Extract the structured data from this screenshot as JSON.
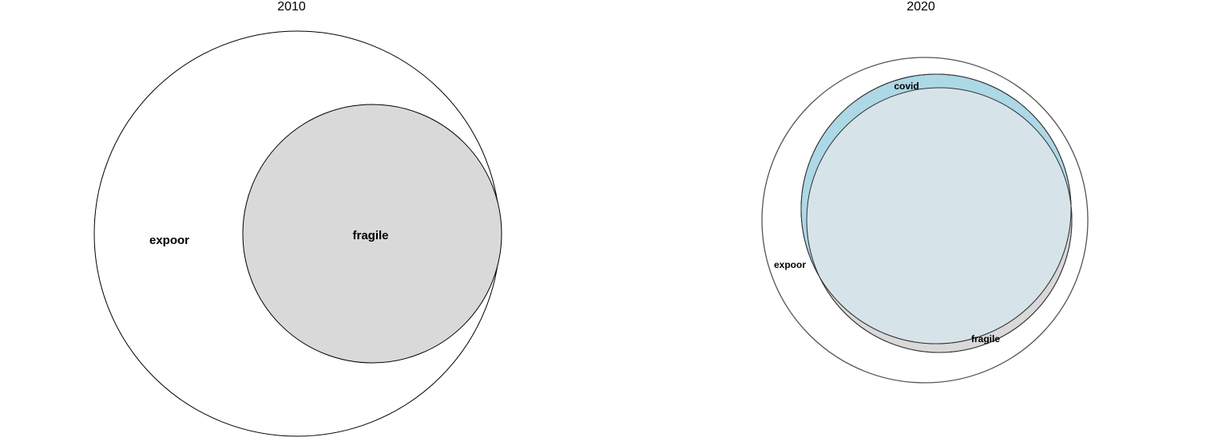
{
  "panels": [
    {
      "title": "2010",
      "sets": [
        {
          "name": "expoor",
          "fill": "#ffffff",
          "stroke": "#000000"
        },
        {
          "name": "fragile",
          "fill": "#d9d9d9",
          "stroke": "#000000"
        }
      ]
    },
    {
      "title": "2020",
      "sets": [
        {
          "name": "expoor",
          "fill": "#ffffff",
          "stroke": "#555555"
        },
        {
          "name": "covid",
          "fill": "#add8e6",
          "stroke": "#333333"
        },
        {
          "name": "fragile",
          "fill": "#d9d9d9",
          "stroke": "#333333"
        }
      ],
      "overlap_fill": "#d6e4ea"
    }
  ]
}
